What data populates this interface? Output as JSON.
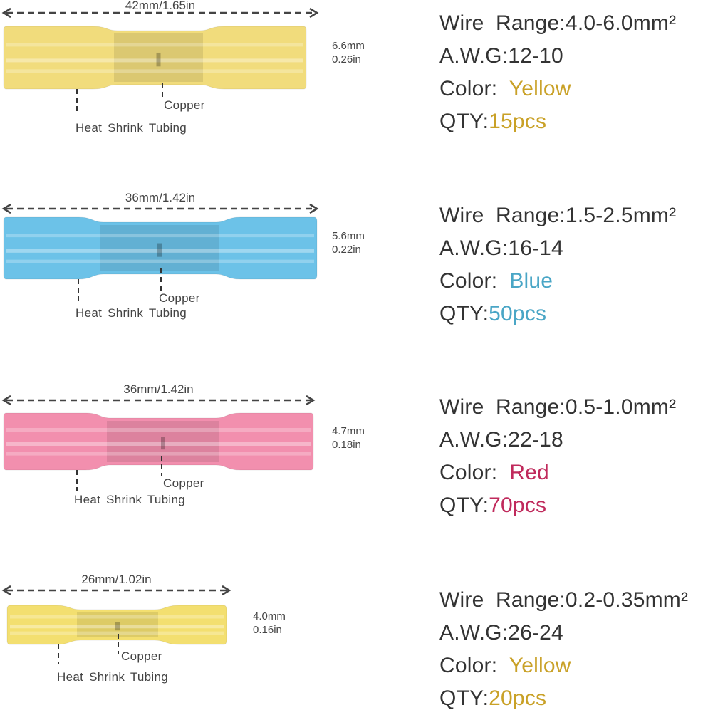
{
  "items": [
    {
      "length": "42mm/1.65in",
      "diameter_mm": "6.6mm",
      "diameter_in": "0.26in",
      "copper_label": "Copper",
      "tubing_label": "Heat Shrink Tubing",
      "wire_range": "Wire Range:4.0-6.0mm²",
      "awg": "A.W.G:12-10",
      "color_label": "Color:",
      "color_value": "Yellow",
      "qty_label": "QTY:",
      "qty_value": "15pcs",
      "accent": "#c9a127",
      "tube_color": "#f1dc7c"
    },
    {
      "length": "36mm/1.42in",
      "diameter_mm": "5.6mm",
      "diameter_in": "0.22in",
      "copper_label": "Copper",
      "tubing_label": "Heat Shrink Tubing",
      "wire_range": "Wire Range:1.5-2.5mm²",
      "awg": "A.W.G:16-14",
      "color_label": "Color:",
      "color_value": "Blue",
      "qty_label": "QTY:",
      "qty_value": "50pcs",
      "accent": "#4aa6c6",
      "tube_color": "#6cc2e8"
    },
    {
      "length": "36mm/1.42in",
      "diameter_mm": "4.7mm",
      "diameter_in": "0.18in",
      "copper_label": "Copper",
      "tubing_label": "Heat Shrink Tubing",
      "wire_range": "Wire Range:0.5-1.0mm²",
      "awg": "A.W.G:22-18",
      "color_label": "Color:",
      "color_value": "Red",
      "qty_label": "QTY:",
      "qty_value": "70pcs",
      "accent": "#c02a5c",
      "tube_color": "#f28fae"
    },
    {
      "length": "26mm/1.02in",
      "diameter_mm": "4.0mm",
      "diameter_in": "0.16in",
      "copper_label": "Copper",
      "tubing_label": "Heat Shrink Tubing",
      "wire_range": "Wire Range:0.2-0.35mm²",
      "awg": "A.W.G:26-24",
      "color_label": "Color:",
      "color_value": "Yellow",
      "qty_label": "QTY:",
      "qty_value": "20pcs",
      "accent": "#c9a127",
      "tube_color": "#f3df70"
    }
  ]
}
